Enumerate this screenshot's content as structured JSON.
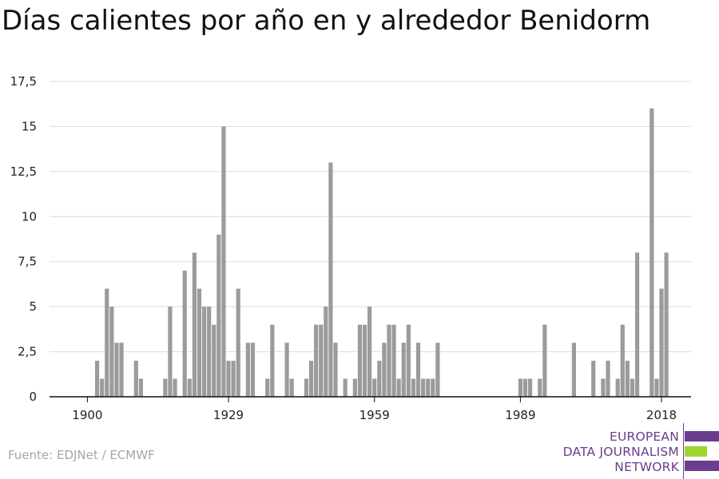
{
  "source": "Fuente: EDJNet / ECMWF",
  "logo": {
    "lines": [
      "EUROPEAN",
      "DATA JOURNALISM",
      "NETWORK"
    ],
    "colors": {
      "purple": "#6a3d8f",
      "green": "#9fd62e"
    }
  },
  "chart_data": {
    "type": "bar",
    "title": "Días calientes por año en y alrededor Benidorm",
    "xlabel": "",
    "ylabel": "",
    "x_start": 1900,
    "x_end": 2020,
    "xticks": [
      "1900",
      "1929",
      "1959",
      "1989",
      "2018"
    ],
    "yticks": [
      "0",
      "2,5",
      "5",
      "7,5",
      "10",
      "12,5",
      "15",
      "17,5"
    ],
    "ylim": [
      0,
      17.5
    ],
    "grid": true,
    "bar_color": "#9b9b9b",
    "categories": [
      1900,
      1901,
      1902,
      1903,
      1904,
      1905,
      1906,
      1907,
      1908,
      1909,
      1910,
      1911,
      1912,
      1913,
      1914,
      1915,
      1916,
      1917,
      1918,
      1919,
      1920,
      1921,
      1922,
      1923,
      1924,
      1925,
      1926,
      1927,
      1928,
      1929,
      1930,
      1931,
      1932,
      1933,
      1934,
      1935,
      1936,
      1937,
      1938,
      1939,
      1940,
      1941,
      1942,
      1943,
      1944,
      1945,
      1946,
      1947,
      1948,
      1949,
      1950,
      1951,
      1952,
      1953,
      1954,
      1955,
      1956,
      1957,
      1958,
      1959,
      1960,
      1961,
      1962,
      1963,
      1964,
      1965,
      1966,
      1967,
      1968,
      1969,
      1970,
      1971,
      1972,
      1973,
      1974,
      1975,
      1976,
      1977,
      1978,
      1979,
      1980,
      1981,
      1982,
      1983,
      1984,
      1985,
      1986,
      1987,
      1988,
      1989,
      1990,
      1991,
      1992,
      1993,
      1994,
      1995,
      1996,
      1997,
      1998,
      1999,
      2000,
      2001,
      2002,
      2003,
      2004,
      2005,
      2006,
      2007,
      2008,
      2009,
      2010,
      2011,
      2012,
      2013,
      2014,
      2015,
      2016,
      2017,
      2018,
      2019,
      2020
    ],
    "values": [
      0,
      0,
      2,
      1,
      6,
      5,
      3,
      3,
      0,
      0,
      2,
      1,
      0,
      0,
      0,
      0,
      1,
      5,
      1,
      0,
      7,
      1,
      8,
      6,
      5,
      5,
      4,
      9,
      15,
      2,
      2,
      6,
      0,
      3,
      3,
      0,
      0,
      1,
      4,
      0,
      0,
      3,
      1,
      0,
      0,
      1,
      2,
      4,
      4,
      5,
      13,
      3,
      0,
      1,
      0,
      1,
      4,
      4,
      5,
      1,
      2,
      3,
      4,
      4,
      1,
      3,
      4,
      1,
      3,
      1,
      1,
      1,
      3,
      0,
      0,
      0,
      0,
      0,
      0,
      0,
      0,
      0,
      0,
      0,
      0,
      0,
      0,
      0,
      0,
      1,
      1,
      1,
      0,
      1,
      4,
      0,
      0,
      0,
      0,
      0,
      3,
      0,
      0,
      0,
      2,
      0,
      1,
      2,
      0,
      1,
      4,
      2,
      1,
      8,
      0,
      0,
      16,
      1,
      6,
      8,
      0
    ]
  }
}
